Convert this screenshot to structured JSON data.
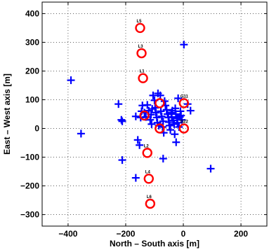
{
  "chart_data": {
    "type": "scatter",
    "xlabel": "North – South axis [m]",
    "ylabel": "East – West axis [m]",
    "xlim": [
      -490,
      290
    ],
    "ylim": [
      -340,
      440
    ],
    "xticks": [
      -400,
      -200,
      0,
      200
    ],
    "yticks": [
      -300,
      -200,
      -100,
      0,
      100,
      200,
      300,
      400
    ],
    "grid": true,
    "colors": {
      "cross": "#0000ff",
      "circle": "#ff0000"
    },
    "series": [
      {
        "marker": "plus",
        "points": [
          [
            -390,
            168
          ],
          [
            -355,
            -18
          ],
          [
            -225,
            85
          ],
          [
            -215,
            30
          ],
          [
            -212,
            25
          ],
          [
            -212,
            -110
          ],
          [
            -165,
            -172
          ],
          [
            -158,
            -40
          ],
          [
            -152,
            -58
          ],
          [
            -148,
            38
          ],
          [
            -145,
            60
          ],
          [
            -142,
            80
          ],
          [
            -135,
            55
          ],
          [
            -130,
            40
          ],
          [
            -125,
            82
          ],
          [
            -120,
            62
          ],
          [
            -115,
            30
          ],
          [
            -112,
            48
          ],
          [
            -110,
            15
          ],
          [
            -108,
            68
          ],
          [
            -105,
            115
          ],
          [
            -100,
            98
          ],
          [
            -98,
            72
          ],
          [
            -95,
            55
          ],
          [
            -92,
            38
          ],
          [
            -90,
            20
          ],
          [
            -88,
            122
          ],
          [
            -85,
            10
          ],
          [
            -80,
            115
          ],
          [
            -78,
            60
          ],
          [
            -75,
            42
          ],
          [
            -72,
            5
          ],
          [
            -70,
            25
          ],
          [
            -68,
            -15
          ],
          [
            -65,
            95
          ],
          [
            -62,
            80
          ],
          [
            -58,
            65
          ],
          [
            -55,
            50
          ],
          [
            -52,
            38
          ],
          [
            -50,
            22
          ],
          [
            -48,
            10
          ],
          [
            -45,
            -5
          ],
          [
            -42,
            55
          ],
          [
            -40,
            40
          ],
          [
            -38,
            62
          ],
          [
            -35,
            28
          ],
          [
            -32,
            15
          ],
          [
            -30,
            -20
          ],
          [
            -28,
            70
          ],
          [
            -26,
            50
          ],
          [
            -25,
            -48
          ],
          [
            -22,
            35
          ],
          [
            -20,
            20
          ],
          [
            -18,
            105
          ],
          [
            -15,
            5
          ],
          [
            -12,
            40
          ],
          [
            -10,
            60
          ],
          [
            -8,
            45
          ],
          [
            -5,
            30
          ],
          [
            2,
            292
          ],
          [
            15,
            85
          ],
          [
            25,
            62
          ],
          [
            95,
            -140
          ],
          [
            -70,
            -105
          ],
          [
            -165,
            42
          ]
        ]
      },
      {
        "marker": "circle",
        "points": [
          {
            "x": -150,
            "y": 350,
            "label": "L5"
          },
          {
            "x": -145,
            "y": 262,
            "label": "L3"
          },
          {
            "x": -140,
            "y": 175,
            "label": "L1"
          },
          {
            "x": -82,
            "y": 88,
            "label": ""
          },
          {
            "x": 2,
            "y": 88,
            "label": "G11"
          },
          {
            "x": -135,
            "y": 45,
            "label": ""
          },
          {
            "x": -82,
            "y": 0,
            "label": ""
          },
          {
            "x": 2,
            "y": 0,
            "label": "D22"
          },
          {
            "x": -125,
            "y": -85,
            "label": "L2"
          },
          {
            "x": -120,
            "y": -175,
            "label": "L4"
          },
          {
            "x": -115,
            "y": -262,
            "label": "L6"
          }
        ]
      }
    ]
  }
}
